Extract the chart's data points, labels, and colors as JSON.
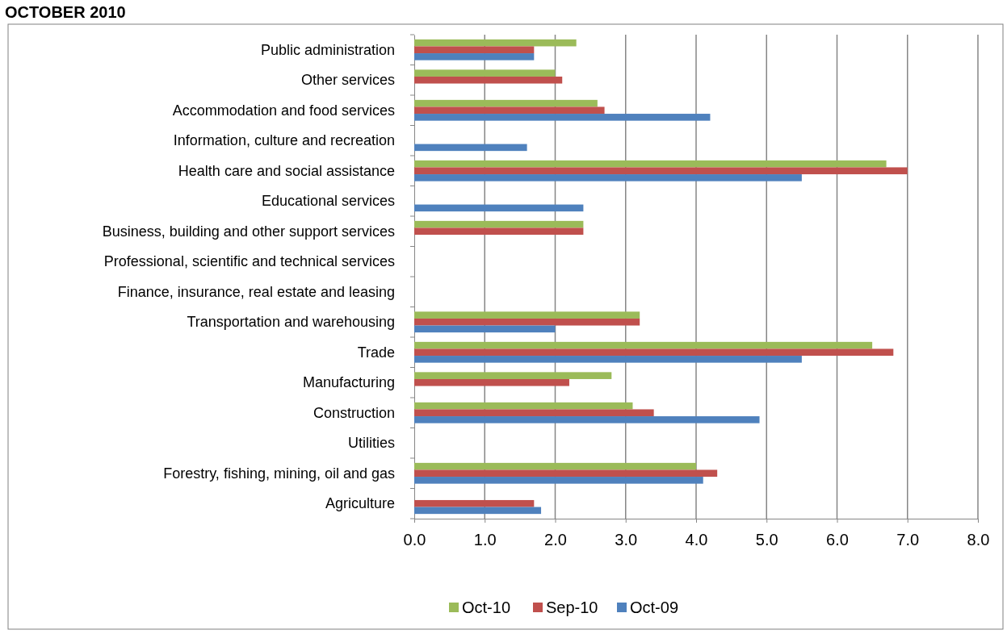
{
  "chart_data": {
    "type": "bar",
    "orientation": "horizontal",
    "title": "OCTOBER 2010",
    "categories": [
      "Public administration",
      "Other services",
      "Accommodation and food services",
      "Information, culture and recreation",
      "Health care and social assistance",
      "Educational services",
      "Business, building and other support services",
      "Professional, scientific and technical services",
      "Finance, insurance, real estate and leasing",
      "Transportation and warehousing",
      "Trade",
      "Manufacturing",
      "Construction",
      "Utilities",
      "Forestry, fishing, mining, oil and gas",
      "Agriculture"
    ],
    "series": [
      {
        "name": "Oct-10",
        "color": "#9bbb59",
        "values": [
          2.3,
          2.0,
          2.6,
          null,
          6.7,
          null,
          2.4,
          null,
          null,
          3.2,
          6.5,
          2.8,
          3.1,
          null,
          4.0,
          null
        ]
      },
      {
        "name": "Sep-10",
        "color": "#c0504d",
        "values": [
          1.7,
          2.1,
          2.7,
          null,
          7.0,
          null,
          2.4,
          null,
          null,
          3.2,
          6.8,
          2.2,
          3.4,
          null,
          4.3,
          1.7
        ]
      },
      {
        "name": "Oct-09",
        "color": "#4f81bd",
        "values": [
          1.7,
          null,
          4.2,
          1.6,
          5.5,
          2.4,
          null,
          null,
          null,
          2.0,
          5.5,
          null,
          4.9,
          null,
          4.1,
          1.8
        ]
      }
    ],
    "xlim": [
      0,
      8
    ],
    "xticks": [
      {
        "value": 0,
        "label": "0.0"
      },
      {
        "value": 1,
        "label": "1.0"
      },
      {
        "value": 2,
        "label": "2.0"
      },
      {
        "value": 3,
        "label": "3.0"
      },
      {
        "value": 4,
        "label": "4.0"
      },
      {
        "value": 5,
        "label": "5.0"
      },
      {
        "value": 6,
        "label": "6.0"
      },
      {
        "value": 7,
        "label": "7.0"
      },
      {
        "value": 8,
        "label": "8.0"
      }
    ],
    "grid": "x",
    "legend": "bottom"
  }
}
